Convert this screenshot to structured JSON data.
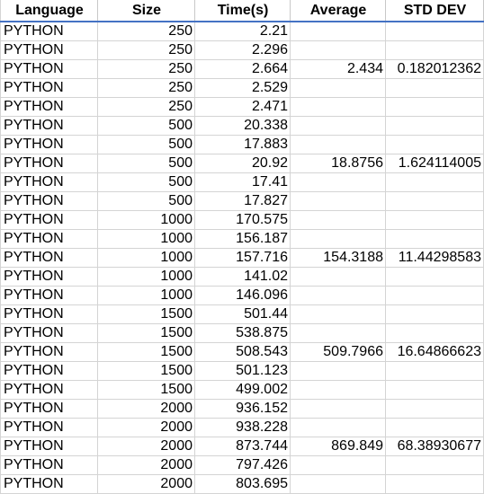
{
  "headers": [
    "Language",
    "Size",
    "Time(s)",
    "Average",
    "STD DEV"
  ],
  "rows": [
    {
      "language": "PYTHON",
      "size": "250",
      "time": "2.21",
      "average": "",
      "std": ""
    },
    {
      "language": "PYTHON",
      "size": "250",
      "time": "2.296",
      "average": "",
      "std": ""
    },
    {
      "language": "PYTHON",
      "size": "250",
      "time": "2.664",
      "average": "2.434",
      "std": "0.182012362"
    },
    {
      "language": "PYTHON",
      "size": "250",
      "time": "2.529",
      "average": "",
      "std": ""
    },
    {
      "language": "PYTHON",
      "size": "250",
      "time": "2.471",
      "average": "",
      "std": ""
    },
    {
      "language": "PYTHON",
      "size": "500",
      "time": "20.338",
      "average": "",
      "std": ""
    },
    {
      "language": "PYTHON",
      "size": "500",
      "time": "17.883",
      "average": "",
      "std": ""
    },
    {
      "language": "PYTHON",
      "size": "500",
      "time": "20.92",
      "average": "18.8756",
      "std": "1.624114005"
    },
    {
      "language": "PYTHON",
      "size": "500",
      "time": "17.41",
      "average": "",
      "std": ""
    },
    {
      "language": "PYTHON",
      "size": "500",
      "time": "17.827",
      "average": "",
      "std": ""
    },
    {
      "language": "PYTHON",
      "size": "1000",
      "time": "170.575",
      "average": "",
      "std": ""
    },
    {
      "language": "PYTHON",
      "size": "1000",
      "time": "156.187",
      "average": "",
      "std": ""
    },
    {
      "language": "PYTHON",
      "size": "1000",
      "time": "157.716",
      "average": "154.3188",
      "std": "11.44298583"
    },
    {
      "language": "PYTHON",
      "size": "1000",
      "time": "141.02",
      "average": "",
      "std": ""
    },
    {
      "language": "PYTHON",
      "size": "1000",
      "time": "146.096",
      "average": "",
      "std": ""
    },
    {
      "language": "PYTHON",
      "size": "1500",
      "time": "501.44",
      "average": "",
      "std": ""
    },
    {
      "language": "PYTHON",
      "size": "1500",
      "time": "538.875",
      "average": "",
      "std": ""
    },
    {
      "language": "PYTHON",
      "size": "1500",
      "time": "508.543",
      "average": "509.7966",
      "std": "16.64866623"
    },
    {
      "language": "PYTHON",
      "size": "1500",
      "time": "501.123",
      "average": "",
      "std": ""
    },
    {
      "language": "PYTHON",
      "size": "1500",
      "time": "499.002",
      "average": "",
      "std": ""
    },
    {
      "language": "PYTHON",
      "size": "2000",
      "time": "936.152",
      "average": "",
      "std": ""
    },
    {
      "language": "PYTHON",
      "size": "2000",
      "time": "938.228",
      "average": "",
      "std": ""
    },
    {
      "language": "PYTHON",
      "size": "2000",
      "time": "873.744",
      "average": "869.849",
      "std": "68.38930677"
    },
    {
      "language": "PYTHON",
      "size": "2000",
      "time": "797.426",
      "average": "",
      "std": ""
    },
    {
      "language": "PYTHON",
      "size": "2000",
      "time": "803.695",
      "average": "",
      "std": ""
    }
  ]
}
